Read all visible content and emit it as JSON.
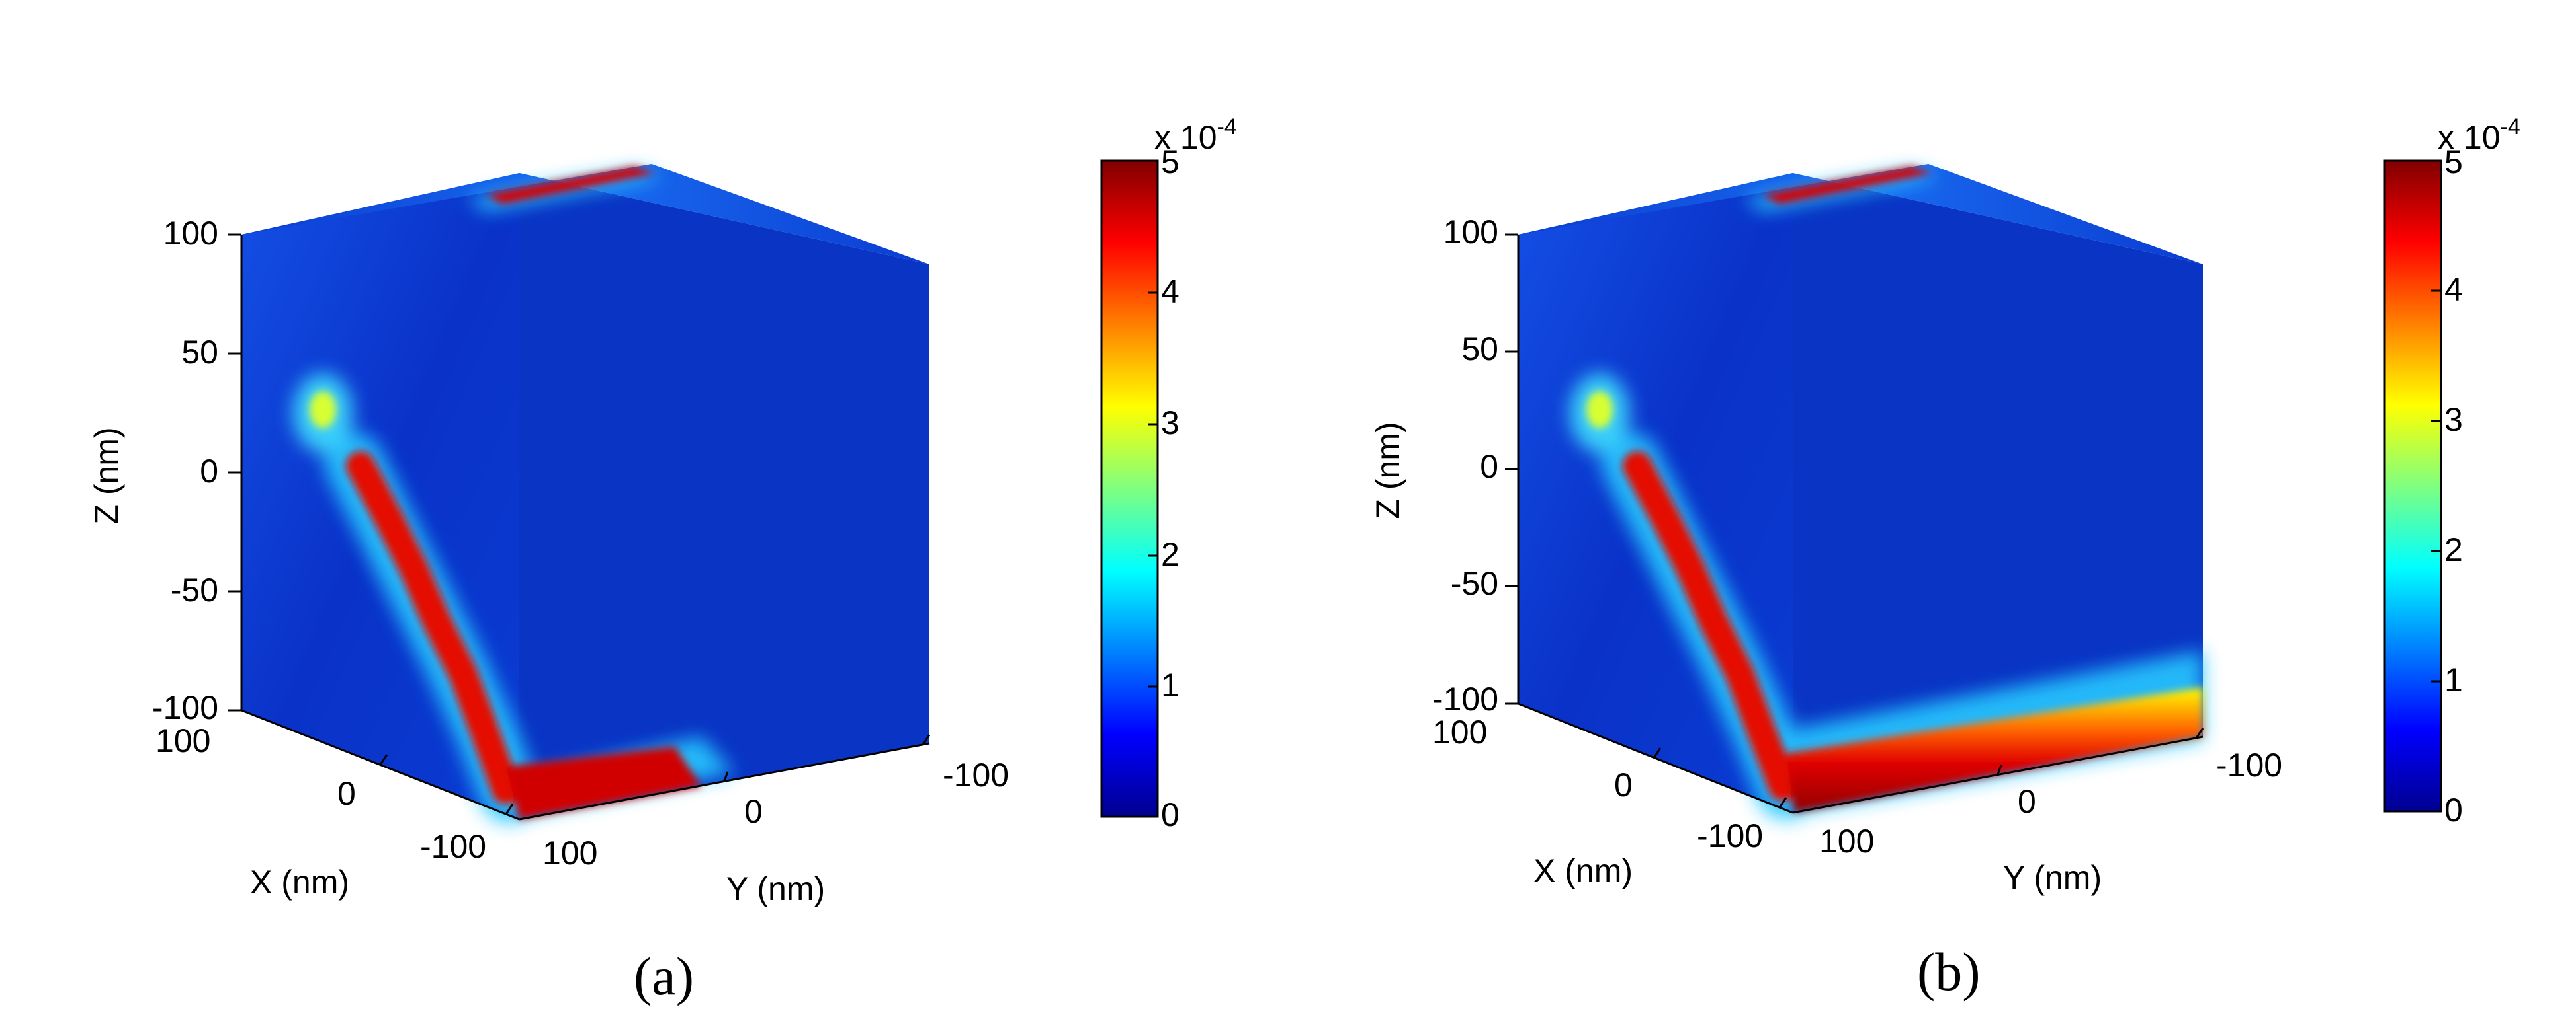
{
  "chart_data": [
    {
      "type": "heatmap",
      "panel_label": "(a)",
      "title": "",
      "xlabel": "X (nm)",
      "ylabel": "Y (nm)",
      "zlabel": "Z (nm)",
      "x_ticks": [
        "100",
        "0",
        "-100"
      ],
      "y_ticks": [
        "100",
        "0",
        "-100"
      ],
      "z_ticks": [
        "100",
        "50",
        "0",
        "-50",
        "-100"
      ],
      "xlim": [
        -100,
        100
      ],
      "ylim": [
        -100,
        100
      ],
      "zlim": [
        -100,
        100
      ],
      "colorbar": {
        "colormap": "jet",
        "range": [
          0,
          5
        ],
        "ticks": [
          "0",
          "1",
          "2",
          "3",
          "4",
          "5"
        ],
        "multiplier": "x 10",
        "exponent": "-4"
      },
      "hotspots": [
        {
          "face": "x-face",
          "path": "diagonal",
          "from": {
            "y": 0,
            "z": 0
          },
          "to": {
            "y": -100,
            "z": -100
          },
          "value": 5
        },
        {
          "face": "x-face",
          "path": "spot",
          "at": {
            "y": 70,
            "z": 25
          },
          "value": 3
        },
        {
          "face": "bottom-edge",
          "path": "edge",
          "from": {
            "y": 100
          },
          "to": {
            "y": 0
          },
          "value": 5
        },
        {
          "face": "top",
          "path": "edge",
          "from": {
            "x": -100,
            "y": 30
          },
          "to": {
            "x": -100,
            "y": -20
          },
          "value": 5
        }
      ]
    },
    {
      "type": "heatmap",
      "panel_label": "(b)",
      "title": "",
      "xlabel": "X (nm)",
      "ylabel": "Y (nm)",
      "zlabel": "Z (nm)",
      "x_ticks": [
        "100",
        "0",
        "-100"
      ],
      "y_ticks": [
        "100",
        "0",
        "-100"
      ],
      "z_ticks": [
        "100",
        "50",
        "0",
        "-50",
        "-100"
      ],
      "xlim": [
        -100,
        100
      ],
      "ylim": [
        -100,
        100
      ],
      "zlim": [
        -100,
        100
      ],
      "colorbar": {
        "colormap": "jet",
        "range": [
          0,
          5
        ],
        "ticks": [
          "0",
          "1",
          "2",
          "3",
          "4",
          "5"
        ],
        "multiplier": "x 10",
        "exponent": "-4"
      },
      "hotspots": [
        {
          "face": "x-face",
          "path": "diagonal",
          "from": {
            "y": 0,
            "z": 0
          },
          "to": {
            "y": -100,
            "z": -100
          },
          "value": 5
        },
        {
          "face": "x-face",
          "path": "spot",
          "at": {
            "y": 70,
            "z": 25
          },
          "value": 3
        },
        {
          "face": "bottom-edge",
          "path": "edge",
          "from": {
            "y": 100
          },
          "to": {
            "y": -100
          },
          "value": 5
        },
        {
          "face": "top",
          "path": "edge",
          "from": {
            "x": -100,
            "y": 30
          },
          "to": {
            "x": -100,
            "y": -20
          },
          "value": 5
        }
      ]
    }
  ]
}
